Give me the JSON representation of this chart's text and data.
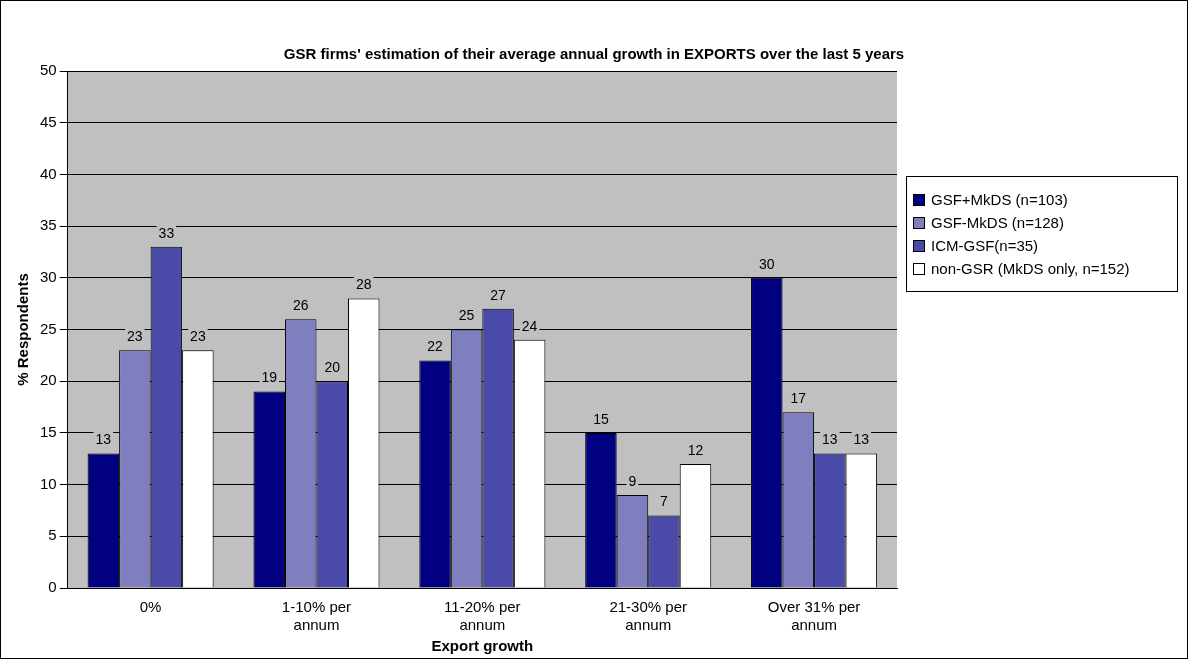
{
  "chart_data": {
    "type": "bar",
    "title": "GSR firms' estimation of their average annual growth in EXPORTS over the last 5 years",
    "xlabel": "Export growth",
    "ylabel": "% Respondents",
    "categories": [
      "0%",
      "1-10% per annum",
      "11-20% per annum",
      "21-30% per annum",
      "Over 31% per annum"
    ],
    "series": [
      {
        "name": "GSF+MkDS (n=103)",
        "color": "#000080",
        "values": [
          13,
          19,
          22,
          15,
          30
        ]
      },
      {
        "name": "GSF-MkDS (n=128)",
        "color": "#7f7fc0",
        "values": [
          23,
          26,
          25,
          9,
          17
        ]
      },
      {
        "name": "ICM-GSF(n=35)",
        "color": "#4a4aa8",
        "values": [
          33,
          20,
          27,
          7,
          13
        ]
      },
      {
        "name": "non-GSR (MkDS only, n=152)",
        "color": "#ffffff",
        "values": [
          23,
          28,
          24,
          12,
          13
        ]
      }
    ],
    "ylim": [
      0,
      50
    ],
    "yticks": [
      0,
      5,
      10,
      15,
      20,
      25,
      30,
      35,
      40,
      45,
      50
    ],
    "grid": "y",
    "legend": "right",
    "data_labels": true
  }
}
